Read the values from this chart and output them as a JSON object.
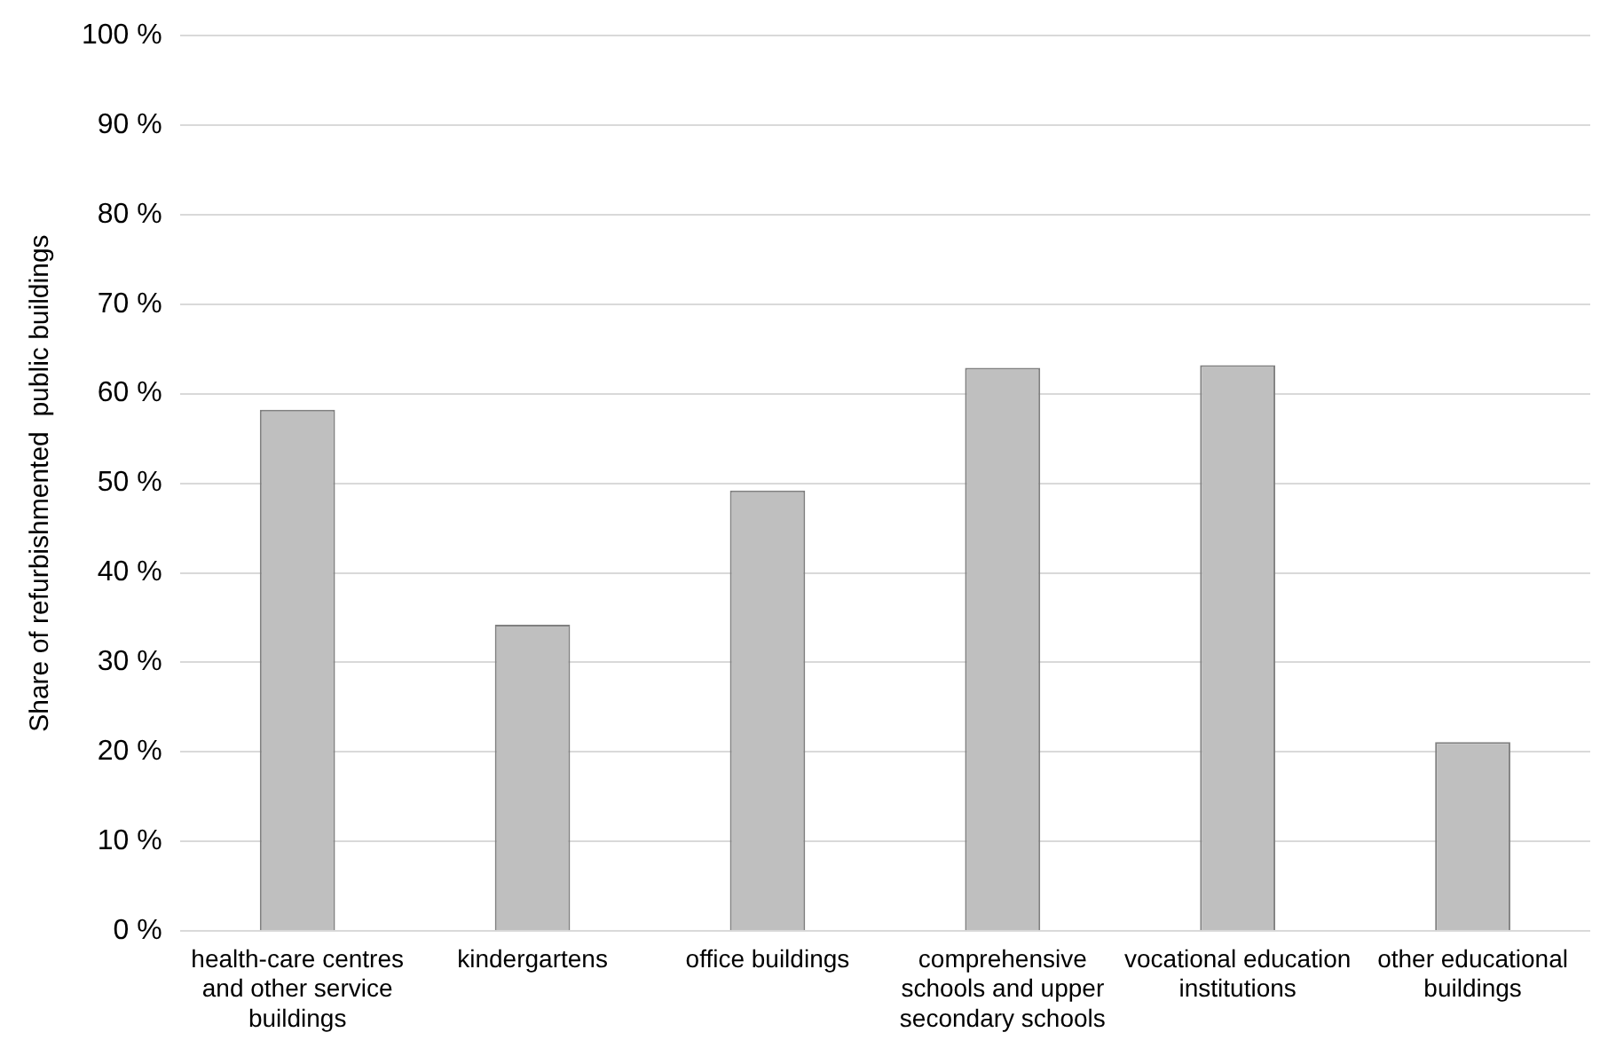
{
  "chart_data": {
    "type": "bar",
    "ylabel": "Share of refurbishmented  public buildings",
    "categories": [
      "health-care centres and other service buildings",
      "kindergartens",
      "office buildings",
      "comprehensive schools and upper secondary schools",
      "vocational education institutions",
      "other educational buildings"
    ],
    "values": [
      58.2,
      34.2,
      49.2,
      62.9,
      63.2,
      21.1
    ],
    "color": "#bfbfbf",
    "ylim": [
      0,
      100
    ],
    "yticks": [
      {
        "value": 0,
        "label": "0 %"
      },
      {
        "value": 10,
        "label": "10 %"
      },
      {
        "value": 20,
        "label": "20 %"
      },
      {
        "value": 30,
        "label": "30 %"
      },
      {
        "value": 40,
        "label": "40 %"
      },
      {
        "value": 50,
        "label": "50 %"
      },
      {
        "value": 60,
        "label": "60 %"
      },
      {
        "value": 70,
        "label": "70 %"
      },
      {
        "value": 80,
        "label": "80 %"
      },
      {
        "value": 90,
        "label": "90 %"
      },
      {
        "value": 100,
        "label": "100 %"
      }
    ],
    "grid": "y",
    "legend": false
  }
}
